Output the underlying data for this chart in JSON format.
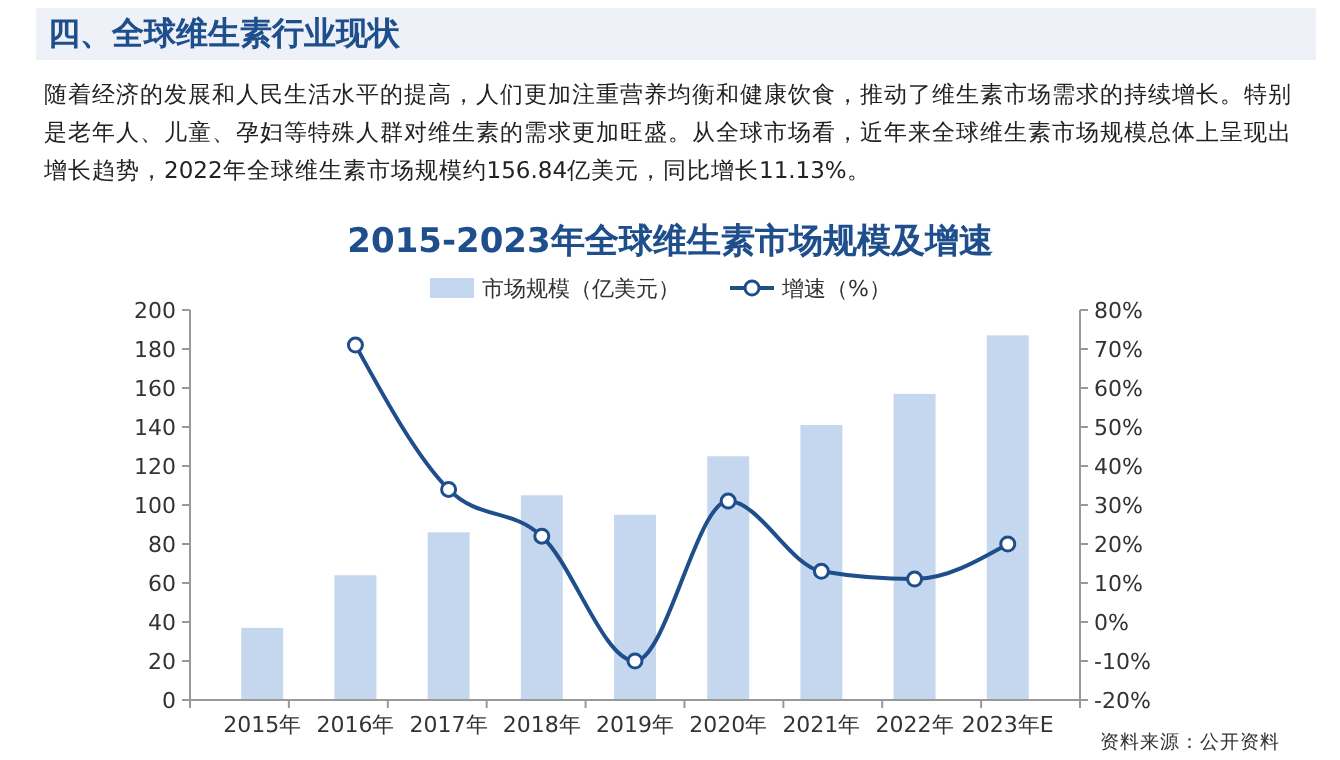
{
  "chart_data": {
    "type": "bar",
    "title": "2015-2023年全球维生素市场规模及增速",
    "annotations": [
      "四、全球维生素行业现状",
      "随着经济的发展和人民生活水平的提高，人们更加注重营养均衡和健康饮食，推动了维生素市场需求的持续增长。特别是老年人、儿童、孕妇等特殊人群对维生素的需求更加旺盛。从全球市场看，近年来全球维生素市场规模总体上呈现出增长趋势，2022年全球维生素市场规模约156.84亿美元，同比增长11.13%。",
      "资料来源：公开资料"
    ],
    "categories": [
      "2015年",
      "2016年",
      "2017年",
      "2018年",
      "2019年",
      "2020年",
      "2021年",
      "2022年",
      "2023年E"
    ],
    "series": [
      {
        "name": "市场规模（亿美元）",
        "color": "#c5d7ef",
        "values": [
          37,
          64,
          86,
          105,
          95,
          125,
          141,
          157,
          187
        ]
      },
      {
        "name": "增速（%）",
        "type": "line",
        "axis": "y2",
        "color": "#1f4e8c",
        "marker": "circle",
        "values": [
          null,
          71,
          34,
          22,
          -10,
          31,
          13,
          11,
          20
        ]
      }
    ],
    "ylim": [
      0,
      200
    ],
    "yticks": [
      0,
      20,
      40,
      60,
      80,
      100,
      120,
      140,
      160,
      180,
      200
    ],
    "y2lim": [
      -20,
      80
    ],
    "y2ticks": [
      {
        "value": -20,
        "label": "-20%"
      },
      {
        "value": -10,
        "label": "-10%"
      },
      {
        "value": 0,
        "label": "0%"
      },
      {
        "value": 10,
        "label": "10%"
      },
      {
        "value": 20,
        "label": "20%"
      },
      {
        "value": 30,
        "label": "30%"
      },
      {
        "value": 40,
        "label": "40%"
      },
      {
        "value": 50,
        "label": "50%"
      },
      {
        "value": 60,
        "label": "60%"
      },
      {
        "value": 70,
        "label": "70%"
      },
      {
        "value": 80,
        "label": "80%"
      }
    ],
    "legend": "top"
  }
}
